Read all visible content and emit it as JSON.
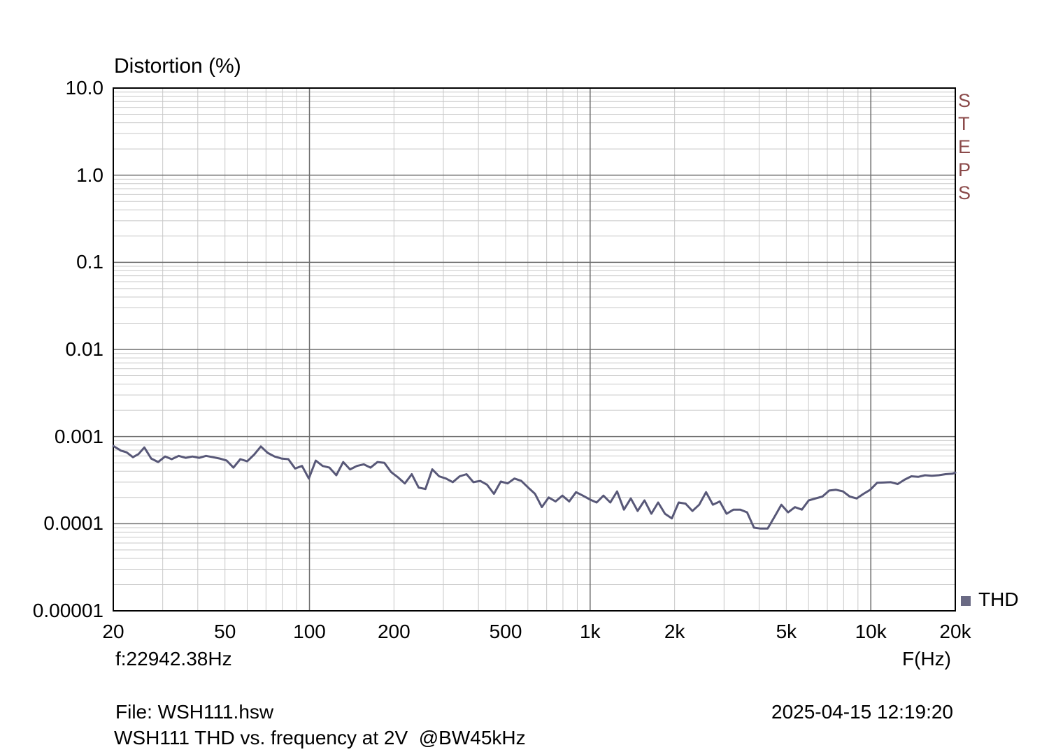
{
  "window": {
    "background": "#ffffff"
  },
  "chart_data": {
    "type": "line",
    "title": "Distortion (%)",
    "xlabel": "F(Hz)",
    "ylabel": "Distortion (%)",
    "x_scale": "log",
    "y_scale": "log",
    "xlim": [
      20,
      20000
    ],
    "ylim": [
      1e-05,
      10
    ],
    "grid": true,
    "legend_position": "bottom-right",
    "x_ticks": [
      {
        "label": "20",
        "value": 20
      },
      {
        "label": "50",
        "value": 50
      },
      {
        "label": "100",
        "value": 100
      },
      {
        "label": "200",
        "value": 200
      },
      {
        "label": "500",
        "value": 500
      },
      {
        "label": "1k",
        "value": 1000
      },
      {
        "label": "2k",
        "value": 2000
      },
      {
        "label": "5k",
        "value": 5000
      },
      {
        "label": "10k",
        "value": 10000
      },
      {
        "label": "20k",
        "value": 20000
      }
    ],
    "y_ticks": [
      {
        "label": "10.0",
        "value": 10
      },
      {
        "label": "1.0",
        "value": 1
      },
      {
        "label": "0.1",
        "value": 0.1
      },
      {
        "label": "0.01",
        "value": 0.01
      },
      {
        "label": "0.001",
        "value": 0.001
      },
      {
        "label": "0.0001",
        "value": 0.0001
      },
      {
        "label": "0.00001",
        "value": 1e-05
      }
    ],
    "colors": {
      "trace": "#585878",
      "legend_marker": "#6a6a84",
      "grid_minor": "#c8c8c8",
      "grid_major": "#6e6e6e",
      "frame": "#000000",
      "watermark": "#8b4a4a"
    },
    "series": [
      {
        "name": "THD",
        "color": "#585878",
        "points": [
          [
            20,
            0.00078
          ],
          [
            21.3,
            0.00069
          ],
          [
            22.3,
            0.00066
          ],
          [
            23.5,
            0.00058
          ],
          [
            24.6,
            0.00063
          ],
          [
            25.8,
            0.00075
          ],
          [
            27.3,
            0.00056
          ],
          [
            28.9,
            0.00051
          ],
          [
            30.6,
            0.00059
          ],
          [
            32.3,
            0.00055
          ],
          [
            34.2,
            0.0006
          ],
          [
            36.2,
            0.00057
          ],
          [
            38.3,
            0.00059
          ],
          [
            40.5,
            0.00057
          ],
          [
            42.8,
            0.0006
          ],
          [
            45.3,
            0.00058
          ],
          [
            47.9,
            0.00056
          ],
          [
            50.7,
            0.00053
          ],
          [
            53.6,
            0.00044
          ],
          [
            56.7,
            0.00055
          ],
          [
            60.0,
            0.00052
          ],
          [
            63.5,
            0.00062
          ],
          [
            67.1,
            0.00077
          ],
          [
            71.0,
            0.00065
          ],
          [
            75.1,
            0.00059
          ],
          [
            79.5,
            0.00056
          ],
          [
            84.1,
            0.00055
          ],
          [
            88.9,
            0.00043
          ],
          [
            94.1,
            0.00046
          ],
          [
            99.5,
            0.00033
          ],
          [
            105.3,
            0.00053
          ],
          [
            111.4,
            0.00046
          ],
          [
            117.8,
            0.00044
          ],
          [
            124.6,
            0.00036
          ],
          [
            131.9,
            0.00051
          ],
          [
            139.5,
            0.00042
          ],
          [
            147.6,
            0.00046
          ],
          [
            156.1,
            0.00048
          ],
          [
            165.1,
            0.00044
          ],
          [
            174.7,
            0.00051
          ],
          [
            184.8,
            0.0005
          ],
          [
            195.5,
            0.00039
          ],
          [
            206.8,
            0.00034
          ],
          [
            218.7,
            0.00029
          ],
          [
            231.4,
            0.00037
          ],
          [
            244.8,
            0.00026
          ],
          [
            258.9,
            0.00025
          ],
          [
            273.9,
            0.00042
          ],
          [
            289.7,
            0.00035
          ],
          [
            306.5,
            0.00033
          ],
          [
            324.2,
            0.0003
          ],
          [
            342.9,
            0.00035
          ],
          [
            362.8,
            0.00037
          ],
          [
            383.7,
            0.0003
          ],
          [
            405.9,
            0.00031
          ],
          [
            429.4,
            0.00028
          ],
          [
            454.2,
            0.00022
          ],
          [
            480.4,
            0.000305
          ],
          [
            508.2,
            0.00029
          ],
          [
            537.5,
            0.00033
          ],
          [
            568.6,
            0.00031
          ],
          [
            601.4,
            0.00026
          ],
          [
            636.1,
            0.00022
          ],
          [
            672.9,
            0.000155
          ],
          [
            711.7,
            0.0002
          ],
          [
            752.8,
            0.00018
          ],
          [
            796.3,
            0.00021
          ],
          [
            842.3,
            0.00018
          ],
          [
            890.9,
            0.00023
          ],
          [
            942.4,
            0.00021
          ],
          [
            996.8,
            0.00019
          ],
          [
            1054.4,
            0.000175
          ],
          [
            1115.3,
            0.00021
          ],
          [
            1179.7,
            0.000175
          ],
          [
            1247.8,
            0.000235
          ],
          [
            1319.9,
            0.000145
          ],
          [
            1396.1,
            0.000195
          ],
          [
            1476.7,
            0.00014
          ],
          [
            1561.9,
            0.000185
          ],
          [
            1652.1,
            0.00013
          ],
          [
            1747.5,
            0.000175
          ],
          [
            1848.4,
            0.00013
          ],
          [
            1955.1,
            0.000115
          ],
          [
            2068.0,
            0.000175
          ],
          [
            2187.4,
            0.00017
          ],
          [
            2313.7,
            0.00014
          ],
          [
            2447.3,
            0.000165
          ],
          [
            2588.6,
            0.00023
          ],
          [
            2738.0,
            0.000165
          ],
          [
            2896.1,
            0.00018
          ],
          [
            3063.3,
            0.00013
          ],
          [
            3240.2,
            0.000145
          ],
          [
            3427.3,
            0.000145
          ],
          [
            3625.2,
            0.000135
          ],
          [
            3834.5,
            9e-05
          ],
          [
            4055.9,
            8.8e-05
          ],
          [
            4290.1,
            8.8e-05
          ],
          [
            4537.8,
            0.00012
          ],
          [
            4799.8,
            0.000165
          ],
          [
            5076.9,
            0.000135
          ],
          [
            5370.1,
            0.000155
          ],
          [
            5680.2,
            0.000145
          ],
          [
            6008.1,
            0.000185
          ],
          [
            6355.0,
            0.000195
          ],
          [
            6722.0,
            0.000205
          ],
          [
            7110.1,
            0.00024
          ],
          [
            7520.7,
            0.000245
          ],
          [
            7954.9,
            0.000235
          ],
          [
            8414.3,
            0.000205
          ],
          [
            8900.2,
            0.000195
          ],
          [
            9414.1,
            0.00022
          ],
          [
            9957.7,
            0.000245
          ],
          [
            10532.7,
            0.000295
          ],
          [
            11140.9,
            0.000297
          ],
          [
            11784.2,
            0.0003
          ],
          [
            12464.7,
            0.000285
          ],
          [
            13184.5,
            0.00032
          ],
          [
            13945.8,
            0.00035
          ],
          [
            14751.1,
            0.000345
          ],
          [
            15602.9,
            0.00036
          ],
          [
            16503.9,
            0.000355
          ],
          [
            17456.9,
            0.00036
          ],
          [
            18464.9,
            0.00037
          ],
          [
            19531.1,
            0.000375
          ],
          [
            20000,
            0.000385
          ]
        ]
      }
    ]
  },
  "watermark": {
    "text": "STEPS",
    "color": "#8b4a4a"
  },
  "legend": {
    "label": "THD",
    "marker_color": "#6a6a84"
  },
  "readout": {
    "cursor_frequency": "f:22942.38Hz",
    "x_axis_unit": "F(Hz)"
  },
  "footer": {
    "file": "File: WSH111.hsw",
    "timestamp": "2025-04-15 12:19:20",
    "description": "WSH111 THD vs. frequency at 2V  @BW45kHz"
  }
}
